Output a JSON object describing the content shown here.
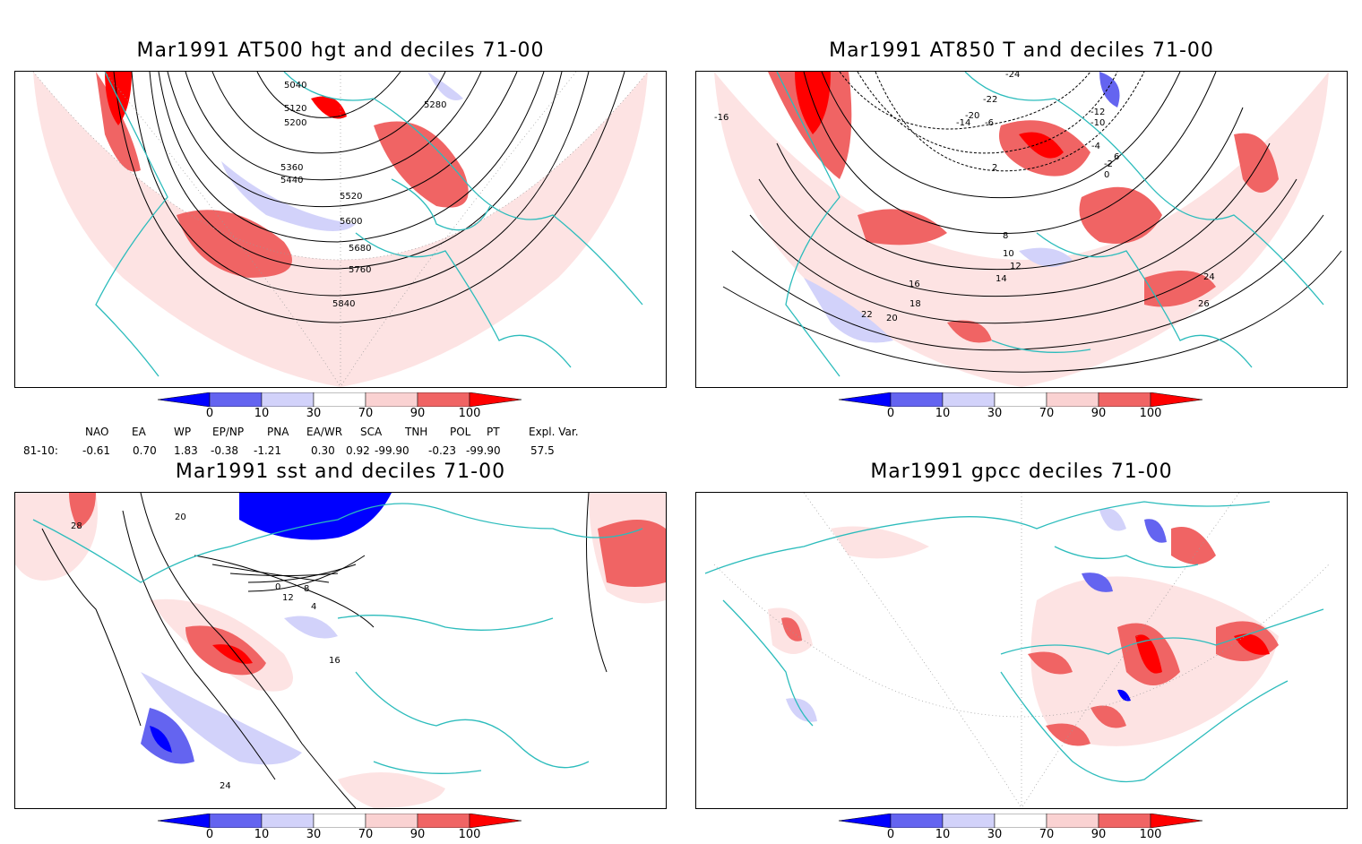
{
  "panels": [
    {
      "title": "Mar1991 AT500 hgt and deciles 71-00",
      "contour_labels": [
        "5040",
        "5120",
        "5200",
        "5280",
        "5360",
        "5440",
        "5520",
        "5600",
        "5680",
        "5760",
        "5840"
      ]
    },
    {
      "title": "Mar1991 AT850 T and deciles 71-00",
      "contour_labels": [
        "-24",
        "-22",
        "-20",
        "-16",
        "-14",
        "-12",
        "-10",
        "-6",
        "-4",
        "-2",
        "0",
        "2",
        "6",
        "8",
        "10",
        "12",
        "14",
        "16",
        "18",
        "20",
        "22",
        "24",
        "26"
      ]
    },
    {
      "title": "Mar1991 sst and deciles 71-00",
      "contour_labels": [
        "28",
        "20",
        "16",
        "12",
        "8",
        "4",
        "0",
        "24"
      ]
    },
    {
      "title": "Mar1991 gpcc deciles 71-00",
      "contour_labels": []
    }
  ],
  "colorbar": {
    "tick_labels": [
      "0",
      "10",
      "30",
      "70",
      "90",
      "100"
    ],
    "colors": [
      "#0000ff",
      "#6464f0",
      "#d2d2fa",
      "#ffffff",
      "#fad2d2",
      "#f06464",
      "#ff0000"
    ]
  },
  "indices": {
    "headers": [
      "NAO",
      "EA",
      "WP",
      "EP/NP",
      "PNA",
      "EA/WR",
      "SCA",
      "TNH",
      "POL",
      "PT",
      "Expl. Var."
    ],
    "row_label": "81-10:",
    "values": [
      "-0.61",
      "0.70",
      "1.83",
      "-0.38",
      "-1.21",
      "0.30",
      "0.92",
      "-99.90",
      "-0.23",
      "-99.90",
      "57.5"
    ]
  }
}
